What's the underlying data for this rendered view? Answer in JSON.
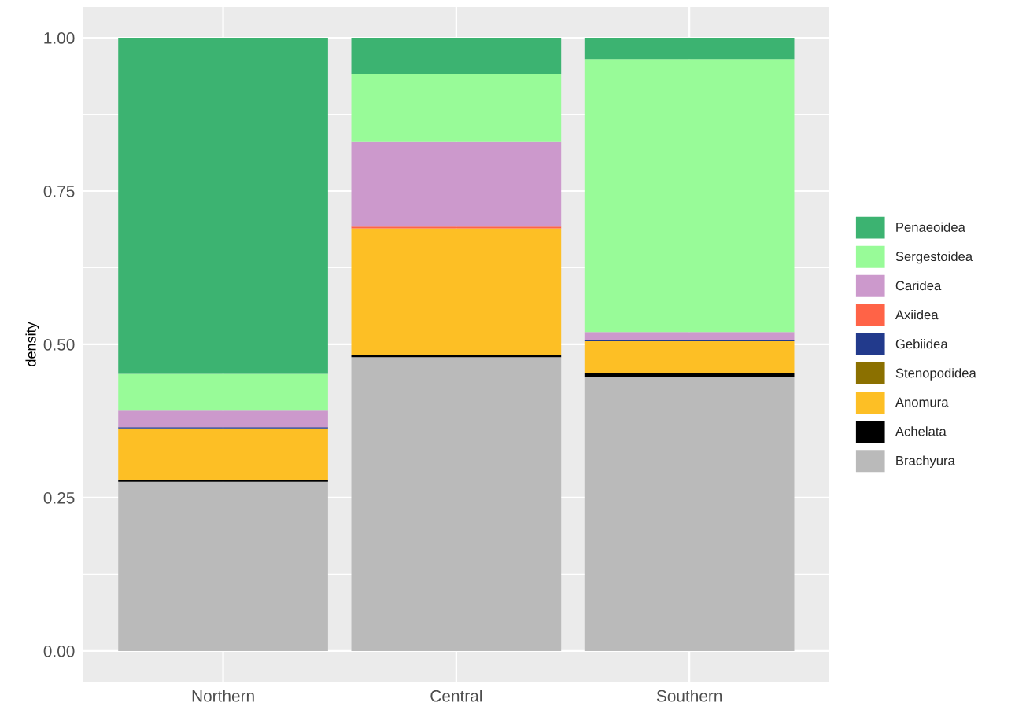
{
  "chart_data": {
    "type": "bar",
    "stacked": true,
    "ylabel": "density",
    "categories": [
      "Northern",
      "Central",
      "Southern"
    ],
    "series": [
      {
        "name": "Brachyura",
        "color": "#bababa",
        "values": [
          0.276,
          0.479,
          0.447
        ]
      },
      {
        "name": "Achelata",
        "color": "#000000",
        "values": [
          0.002,
          0.003,
          0.006
        ]
      },
      {
        "name": "Anomura",
        "color": "#fdbf25",
        "values": [
          0.085,
          0.207,
          0.052
        ]
      },
      {
        "name": "Stenopodidea",
        "color": "#8b7000",
        "values": [
          0,
          0,
          0
        ]
      },
      {
        "name": "Gebiidea",
        "color": "#223a8c",
        "values": [
          0.002,
          0,
          0.002
        ]
      },
      {
        "name": "Axiidea",
        "color": "#ff6347",
        "values": [
          0,
          0.003,
          0
        ]
      },
      {
        "name": "Caridea",
        "color": "#cc99cc",
        "values": [
          0.027,
          0.139,
          0.013
        ]
      },
      {
        "name": "Sergestoidea",
        "color": "#98fb98",
        "values": [
          0.06,
          0.11,
          0.445
        ]
      },
      {
        "name": "Penaeoidea",
        "color": "#3cb371",
        "values": [
          0.548,
          0.059,
          0.035
        ]
      }
    ],
    "ylim": [
      -0.05,
      1.05
    ],
    "yticks": [
      {
        "value": 0,
        "label": "0.00"
      },
      {
        "value": 0.25,
        "label": "0.25"
      },
      {
        "value": 0.5,
        "label": "0.50"
      },
      {
        "value": 0.75,
        "label": "0.75"
      },
      {
        "value": 1,
        "label": "1.00"
      }
    ],
    "grid": true,
    "legend": "right"
  }
}
